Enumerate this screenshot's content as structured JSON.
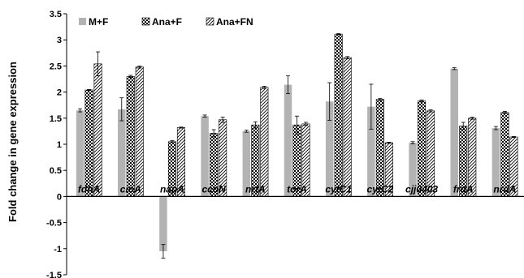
{
  "chart_data": {
    "type": "bar",
    "title": "",
    "xlabel": "",
    "ylabel": "Fold change in gene expression",
    "ylim": [
      -1.5,
      3.5
    ],
    "yticks": [
      "3.5",
      "3",
      "2.5",
      "2",
      "1.5",
      "1",
      "0.5",
      "0",
      "-0.5",
      "-1",
      "-1.5"
    ],
    "grid": false,
    "legend_position": "top-left",
    "categories": [
      "fdhA",
      "cioA",
      "napA",
      "ccoN",
      "nrfA",
      "torA",
      "cytC1",
      "cytC2",
      "cjj0403",
      "frdA",
      "nrdA"
    ],
    "series": [
      {
        "name": "M+F",
        "pattern": "solid",
        "color": "#b3b3b3",
        "values": [
          1.65,
          1.67,
          -1.05,
          1.54,
          1.25,
          2.14,
          1.82,
          1.72,
          1.03,
          2.45,
          1.31
        ],
        "errors": [
          0.03,
          0.22,
          0.13,
          0.02,
          0.02,
          0.17,
          0.36,
          0.43,
          0.02,
          0.02,
          0.03
        ]
      },
      {
        "name": "Ana+F",
        "pattern": "checker",
        "color": "#000000",
        "values": [
          2.04,
          2.3,
          1.05,
          1.21,
          1.37,
          1.37,
          3.11,
          1.86,
          1.83,
          1.35,
          1.61
        ],
        "errors": [
          0.01,
          0.02,
          0.02,
          0.07,
          0.06,
          0.17,
          0.01,
          0.02,
          0.02,
          0.07,
          0.02
        ]
      },
      {
        "name": "Ana+FN",
        "pattern": "diagonal",
        "color": "#000000",
        "values": [
          2.54,
          2.48,
          1.32,
          1.47,
          2.09,
          1.39,
          2.66,
          1.03,
          1.64,
          1.5,
          1.14
        ],
        "errors": [
          0.23,
          0.02,
          0.01,
          0.05,
          0.02,
          0.03,
          0.02,
          0.01,
          0.02,
          0.02,
          0.01
        ]
      }
    ]
  }
}
